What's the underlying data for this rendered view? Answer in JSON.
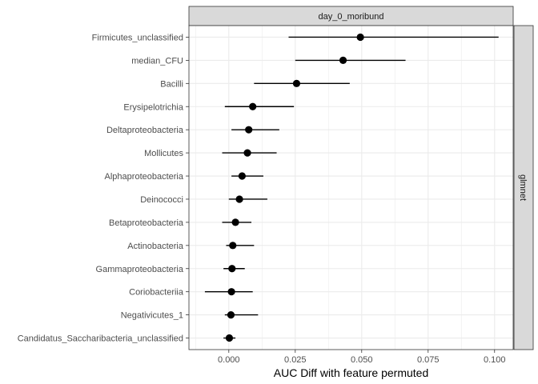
{
  "chart_data": {
    "type": "scatter",
    "xlabel": "AUC Diff with feature permuted",
    "ylabel": "",
    "facet_top_label": "day_0_moribund",
    "facet_right_label": "glmnet",
    "xlim": [
      -0.015,
      0.107
    ],
    "x_ticks": [
      0.0,
      0.025,
      0.05,
      0.075,
      0.1
    ],
    "x_tick_labels": [
      "0.000",
      "0.025",
      "0.050",
      "0.075",
      "0.100"
    ],
    "grid": true,
    "colors": {
      "point": "#000000",
      "errorbar": "#000000",
      "strip_fill": "#d9d9d9",
      "grid": "#ebebeb",
      "panel_border": "#333333"
    },
    "points": [
      {
        "label": "Firmicutes_unclassified",
        "value": 0.0495,
        "lower": 0.0225,
        "upper": 0.1015
      },
      {
        "label": "median_CFU",
        "value": 0.043,
        "lower": 0.025,
        "upper": 0.0665
      },
      {
        "label": "Bacilli",
        "value": 0.0255,
        "lower": 0.0095,
        "upper": 0.0455
      },
      {
        "label": "Erysipelotrichia",
        "value": 0.009,
        "lower": -0.0015,
        "upper": 0.0245
      },
      {
        "label": "Deltaproteobacteria",
        "value": 0.0075,
        "lower": 0.001,
        "upper": 0.019
      },
      {
        "label": "Mollicutes",
        "value": 0.007,
        "lower": -0.0025,
        "upper": 0.018
      },
      {
        "label": "Alphaproteobacteria",
        "value": 0.005,
        "lower": 0.001,
        "upper": 0.013
      },
      {
        "label": "Deinococci",
        "value": 0.004,
        "lower": 0.0,
        "upper": 0.0145
      },
      {
        "label": "Betaproteobacteria",
        "value": 0.0025,
        "lower": -0.0025,
        "upper": 0.0085
      },
      {
        "label": "Actinobacteria",
        "value": 0.0015,
        "lower": -0.001,
        "upper": 0.0095
      },
      {
        "label": "Gammaproteobacteria",
        "value": 0.0012,
        "lower": -0.002,
        "upper": 0.006
      },
      {
        "label": "Coriobacteriia",
        "value": 0.001,
        "lower": -0.009,
        "upper": 0.009
      },
      {
        "label": "Negativicutes_1",
        "value": 0.0008,
        "lower": -0.0015,
        "upper": 0.011
      },
      {
        "label": "Candidatus_Saccharibacteria_unclassified",
        "value": 0.0002,
        "lower": -0.002,
        "upper": 0.0025
      }
    ]
  }
}
